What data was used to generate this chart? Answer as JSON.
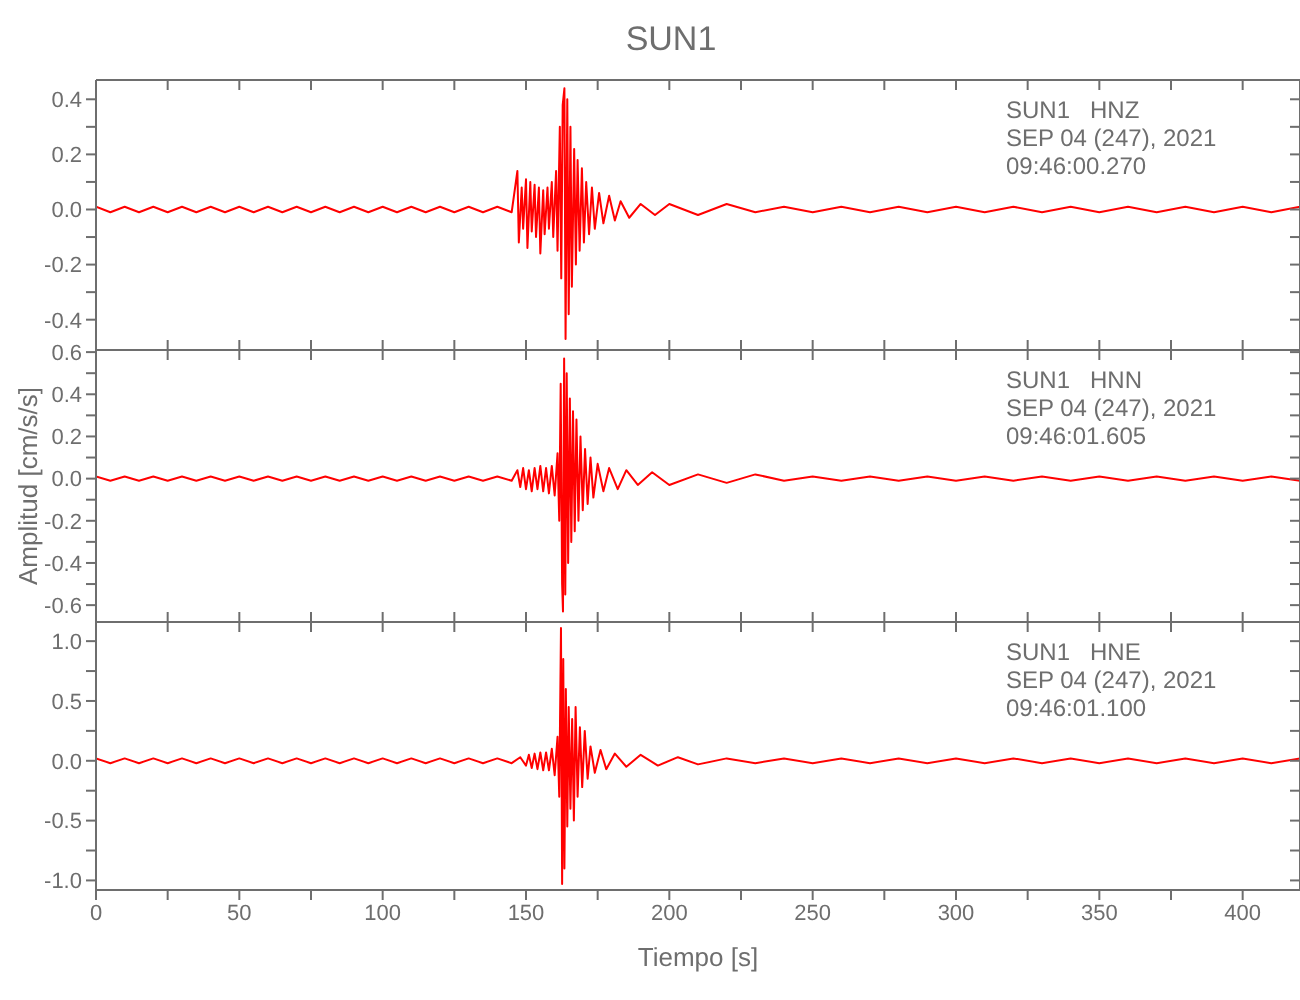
{
  "chart_data": [
    {
      "type": "line",
      "title": "SUN1",
      "color": "#ff0000",
      "tick_labels": "y",
      "xlim": [
        0,
        420
      ],
      "ylim": [
        -0.51,
        0.47
      ],
      "xticks": [
        0,
        {
          "value": 25,
          "label": null
        },
        50,
        {
          "value": 75,
          "label": null
        },
        100,
        {
          "value": 125,
          "label": null
        },
        150,
        {
          "value": 175,
          "label": null
        },
        200,
        {
          "value": 225,
          "label": null
        },
        250,
        {
          "value": 275,
          "label": null
        },
        300,
        {
          "value": 325,
          "label": null
        },
        350,
        {
          "value": 375,
          "label": null
        },
        400
      ],
      "yticks": [
        -0.4,
        {
          "value": -0.3,
          "label": null
        },
        -0.2,
        {
          "value": -0.1,
          "label": null
        },
        {
          "value": 0,
          "label": "0.0"
        },
        {
          "value": 0.1,
          "label": null
        },
        0.2,
        {
          "value": 0.3,
          "label": null
        },
        0.4
      ],
      "annotations": [
        "SUN1   HNZ",
        "SEP 04 (247), 2021",
        "09:46:00.270"
      ],
      "x": [
        0,
        5,
        10,
        15,
        20,
        25,
        30,
        35,
        40,
        45,
        50,
        55,
        60,
        65,
        70,
        75,
        80,
        85,
        90,
        95,
        100,
        105,
        110,
        115,
        120,
        125,
        130,
        135,
        140,
        145,
        147,
        147.5,
        148.5,
        149,
        150,
        150.5,
        151.5,
        152,
        153,
        153.5,
        154.5,
        155,
        156,
        156.5,
        157.5,
        158,
        159,
        159.5,
        160.5,
        161,
        161.8,
        162.3,
        162.8,
        163.4,
        163.8,
        164.4,
        164.9,
        165.5,
        166,
        166.8,
        167.4,
        168,
        168.7,
        169.5,
        170.2,
        171,
        172,
        173,
        174,
        175.5,
        177,
        179,
        181,
        183,
        186,
        190,
        195,
        200,
        210,
        220,
        230,
        240,
        250,
        260,
        270,
        280,
        290,
        300,
        310,
        320,
        330,
        340,
        350,
        360,
        370,
        380,
        390,
        400,
        410,
        420
      ],
      "values": [
        0.01,
        -0.01,
        0.01,
        -0.01,
        0.01,
        -0.01,
        0.01,
        -0.01,
        0.01,
        -0.01,
        0.01,
        -0.01,
        0.01,
        -0.01,
        0.01,
        -0.01,
        0.01,
        -0.01,
        0.01,
        -0.01,
        0.01,
        -0.01,
        0.01,
        -0.01,
        0.01,
        -0.01,
        0.01,
        -0.01,
        0.01,
        -0.01,
        0.14,
        -0.12,
        0.08,
        -0.07,
        0.11,
        -0.14,
        0.1,
        -0.08,
        0.09,
        -0.1,
        0.08,
        -0.16,
        0.07,
        -0.09,
        0.08,
        -0.07,
        0.1,
        -0.1,
        0.14,
        -0.15,
        0.3,
        -0.25,
        0.38,
        0.44,
        -0.47,
        0.4,
        -0.38,
        0.3,
        -0.28,
        0.22,
        -0.2,
        0.18,
        -0.15,
        0.15,
        -0.12,
        0.1,
        -0.09,
        0.08,
        -0.07,
        0.06,
        -0.05,
        0.05,
        -0.04,
        0.03,
        -0.03,
        0.02,
        -0.02,
        0.02,
        -0.02,
        0.02,
        -0.01,
        0.01,
        -0.01,
        0.01,
        -0.01,
        0.01,
        -0.01,
        0.01,
        -0.01,
        0.01,
        -0.01,
        0.01,
        -0.01,
        0.01,
        -0.01,
        0.01,
        -0.01,
        0.01,
        -0.01,
        0.01
      ]
    },
    {
      "type": "line",
      "ylabel": "Amplitud [cm/s/s]",
      "color": "#ff0000",
      "tick_labels": "y",
      "xlim": [
        0,
        420
      ],
      "ylim": [
        -0.68,
        0.61
      ],
      "xticks": [
        0,
        {
          "value": 25,
          "label": null
        },
        50,
        {
          "value": 75,
          "label": null
        },
        100,
        {
          "value": 125,
          "label": null
        },
        150,
        {
          "value": 175,
          "label": null
        },
        200,
        {
          "value": 225,
          "label": null
        },
        250,
        {
          "value": 275,
          "label": null
        },
        300,
        {
          "value": 325,
          "label": null
        },
        350,
        {
          "value": 375,
          "label": null
        },
        400
      ],
      "yticks": [
        -0.6,
        {
          "value": -0.5,
          "label": null
        },
        -0.4,
        {
          "value": -0.3,
          "label": null
        },
        -0.2,
        {
          "value": -0.1,
          "label": null
        },
        {
          "value": 0,
          "label": "0.0"
        },
        {
          "value": 0.1,
          "label": null
        },
        0.2,
        {
          "value": 0.3,
          "label": null
        },
        0.4,
        {
          "value": 0.5,
          "label": null
        },
        0.6
      ],
      "annotations": [
        "SUN1   HNN",
        "SEP 04 (247), 2021",
        "09:46:01.605"
      ],
      "x": [
        0,
        5,
        10,
        15,
        20,
        25,
        30,
        35,
        40,
        45,
        50,
        55,
        60,
        65,
        70,
        75,
        80,
        85,
        90,
        95,
        100,
        105,
        110,
        115,
        120,
        125,
        130,
        135,
        140,
        145,
        147,
        148,
        149,
        150,
        151,
        152,
        153,
        154,
        155,
        156,
        157,
        158,
        159,
        160,
        161,
        161.6,
        162.1,
        162.6,
        162.9,
        163.3,
        163.7,
        164.2,
        164.7,
        165.3,
        165.8,
        166.4,
        167,
        167.6,
        168.3,
        169,
        169.8,
        170.6,
        171.5,
        172.5,
        173.5,
        175,
        177,
        179,
        182,
        185,
        189,
        194,
        200,
        210,
        220,
        230,
        240,
        250,
        260,
        270,
        280,
        290,
        300,
        310,
        320,
        330,
        340,
        350,
        360,
        370,
        380,
        390,
        400,
        410,
        420
      ],
      "values": [
        0.01,
        -0.01,
        0.01,
        -0.01,
        0.01,
        -0.01,
        0.01,
        -0.01,
        0.01,
        -0.01,
        0.01,
        -0.01,
        0.01,
        -0.01,
        0.01,
        -0.01,
        0.01,
        -0.01,
        0.01,
        -0.01,
        0.01,
        -0.01,
        0.01,
        -0.01,
        0.01,
        -0.01,
        0.01,
        -0.01,
        0.01,
        -0.01,
        0.04,
        -0.04,
        0.05,
        -0.05,
        0.04,
        -0.06,
        0.05,
        -0.05,
        0.06,
        -0.06,
        0.05,
        -0.07,
        0.06,
        -0.08,
        0.12,
        -0.2,
        0.45,
        -0.5,
        -0.63,
        0.57,
        -0.55,
        0.5,
        -0.4,
        0.38,
        -0.3,
        0.32,
        -0.25,
        0.28,
        -0.2,
        0.2,
        -0.15,
        0.14,
        -0.12,
        0.1,
        -0.09,
        0.07,
        -0.06,
        0.05,
        -0.05,
        0.04,
        -0.03,
        0.03,
        -0.03,
        0.02,
        -0.02,
        0.02,
        -0.01,
        0.01,
        -0.01,
        0.01,
        -0.01,
        0.01,
        -0.01,
        0.01,
        -0.01,
        0.01,
        -0.01,
        0.01,
        -0.01,
        0.01,
        -0.01,
        0.01,
        -0.01,
        0.01,
        -0.01
      ]
    },
    {
      "type": "line",
      "xlabel": "Tiempo [s]",
      "color": "#ff0000",
      "xlim": [
        0,
        420
      ],
      "ylim": [
        -1.08,
        1.16
      ],
      "xticks": [
        0,
        {
          "value": 25,
          "label": null
        },
        50,
        {
          "value": 75,
          "label": null
        },
        100,
        {
          "value": 125,
          "label": null
        },
        150,
        {
          "value": 175,
          "label": null
        },
        200,
        {
          "value": 225,
          "label": null
        },
        250,
        {
          "value": 275,
          "label": null
        },
        300,
        {
          "value": 325,
          "label": null
        },
        350,
        {
          "value": 375,
          "label": null
        },
        400
      ],
      "yticks": [
        {
          "value": -1,
          "label": "-1.0"
        },
        {
          "value": -0.75,
          "label": null
        },
        -0.5,
        {
          "value": -0.25,
          "label": null
        },
        {
          "value": 0,
          "label": "0.0"
        },
        {
          "value": 0.25,
          "label": null
        },
        0.5,
        {
          "value": 0.75,
          "label": null
        },
        {
          "value": 1,
          "label": "1.0"
        }
      ],
      "annotations": [
        "SUN1   HNE",
        "SEP 04 (247), 2021",
        "09:46:01.100"
      ],
      "x": [
        0,
        5,
        10,
        15,
        20,
        25,
        30,
        35,
        40,
        45,
        50,
        55,
        60,
        65,
        70,
        75,
        80,
        85,
        90,
        95,
        100,
        105,
        110,
        115,
        120,
        125,
        130,
        135,
        140,
        145,
        148,
        150,
        151,
        152,
        153,
        154,
        155,
        156,
        157,
        158,
        159,
        160,
        161,
        161.6,
        162.2,
        162.6,
        163,
        163.4,
        163.9,
        164.4,
        164.9,
        165.5,
        166.1,
        166.7,
        167.3,
        168,
        168.8,
        169.6,
        170.5,
        171.5,
        172.5,
        174,
        176,
        178,
        181,
        185,
        190,
        196,
        203,
        210,
        220,
        230,
        240,
        250,
        260,
        270,
        280,
        290,
        300,
        310,
        320,
        330,
        340,
        350,
        360,
        370,
        380,
        390,
        400,
        410,
        420
      ],
      "values": [
        0.02,
        -0.02,
        0.02,
        -0.02,
        0.02,
        -0.02,
        0.02,
        -0.02,
        0.02,
        -0.02,
        0.02,
        -0.02,
        0.02,
        -0.02,
        0.02,
        -0.02,
        0.02,
        -0.02,
        0.02,
        -0.02,
        0.02,
        -0.02,
        0.02,
        -0.02,
        0.02,
        -0.02,
        0.02,
        -0.02,
        0.02,
        -0.02,
        0.03,
        -0.04,
        0.05,
        -0.06,
        0.06,
        -0.07,
        0.07,
        -0.08,
        0.07,
        -0.08,
        0.1,
        -0.12,
        0.2,
        -0.3,
        1.11,
        -1.03,
        0.85,
        -0.9,
        0.6,
        -0.55,
        0.45,
        -0.4,
        0.35,
        -0.5,
        0.45,
        -0.3,
        0.28,
        -0.22,
        0.25,
        -0.15,
        0.12,
        -0.1,
        0.09,
        -0.07,
        0.06,
        -0.05,
        0.05,
        -0.04,
        0.03,
        -0.03,
        0.02,
        -0.02,
        0.02,
        -0.02,
        0.02,
        -0.02,
        0.02,
        -0.02,
        0.02,
        -0.02,
        0.02,
        -0.02,
        0.02,
        -0.02,
        0.02,
        -0.02,
        0.02,
        -0.02,
        0.02,
        -0.02,
        0.02
      ]
    }
  ]
}
